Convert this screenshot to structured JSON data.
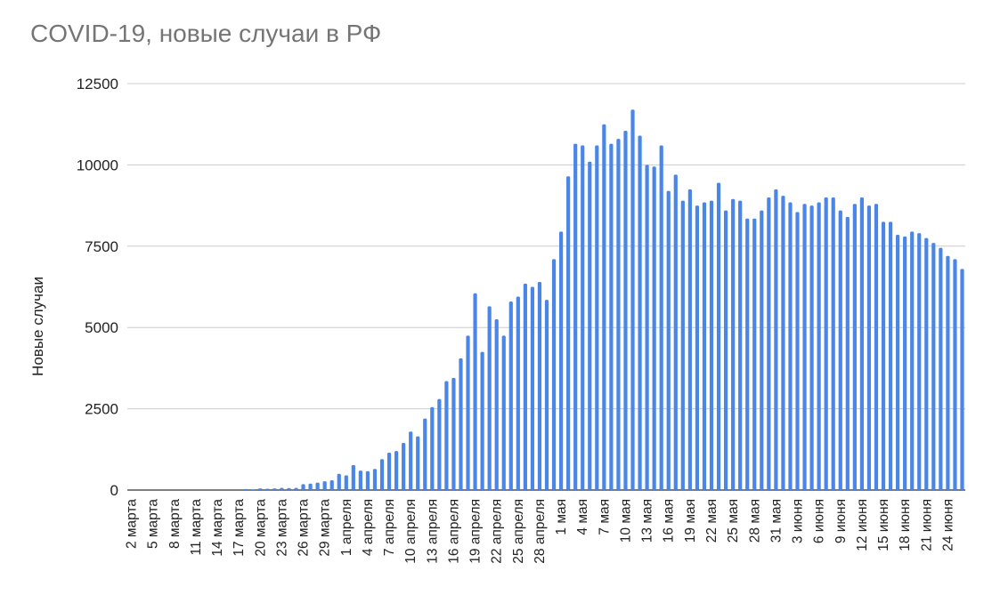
{
  "chart_data": {
    "type": "bar",
    "title": "COVID-19, новые случаи в РФ",
    "xlabel": "",
    "ylabel": "Новые случаи",
    "ylim": [
      0,
      12500
    ],
    "yticks": [
      0,
      2500,
      5000,
      7500,
      10000,
      12500
    ],
    "grid": true,
    "bar_color": "#4a86e8",
    "grid_color": "#cccccc",
    "categories": [
      "2 марта",
      "3 марта",
      "4 марта",
      "5 марта",
      "6 марта",
      "7 марта",
      "8 марта",
      "9 марта",
      "10 марта",
      "11 марта",
      "12 марта",
      "13 марта",
      "14 марта",
      "15 марта",
      "16 марта",
      "17 марта",
      "18 марта",
      "19 марта",
      "20 марта",
      "21 марта",
      "22 марта",
      "23 марта",
      "24 марта",
      "25 марта",
      "26 марта",
      "27 марта",
      "28 марта",
      "29 марта",
      "30 марта",
      "31 марта",
      "1 апреля",
      "2 апреля",
      "3 апреля",
      "4 апреля",
      "5 апреля",
      "6 апреля",
      "7 апреля",
      "8 апреля",
      "9 апреля",
      "10 апреля",
      "11 апреля",
      "12 апреля",
      "13 апреля",
      "14 апреля",
      "15 апреля",
      "16 апреля",
      "17 апреля",
      "18 апреля",
      "19 апреля",
      "20 апреля",
      "21 апреля",
      "22 апреля",
      "23 апреля",
      "24 апреля",
      "25 апреля",
      "26 апреля",
      "27 апреля",
      "28 апреля",
      "29 апреля",
      "30 апреля",
      "1 мая",
      "2 мая",
      "3 мая",
      "4 мая",
      "5 мая",
      "6 мая",
      "7 мая",
      "8 мая",
      "9 мая",
      "10 мая",
      "11 мая",
      "12 мая",
      "13 мая",
      "14 мая",
      "15 мая",
      "16 мая",
      "17 мая",
      "18 мая",
      "19 мая",
      "20 мая",
      "21 мая",
      "22 мая",
      "23 мая",
      "24 мая",
      "25 мая",
      "26 мая",
      "27 мая",
      "28 мая",
      "29 мая",
      "30 мая",
      "31 мая",
      "1 июня",
      "2 июня",
      "3 июня",
      "4 июня",
      "5 июня",
      "6 июня",
      "7 июня",
      "8 июня",
      "9 июня",
      "10 июня",
      "11 июня",
      "12 июня",
      "13 июня",
      "14 июня",
      "15 июня",
      "16 июня",
      "17 июня",
      "18 июня",
      "19 июня",
      "20 июня",
      "21 июня",
      "22 июня",
      "23 июня",
      "24 июня",
      "25 июня",
      "26 июня"
    ],
    "xtick_labels": [
      "2 марта",
      "5 марта",
      "8 марта",
      "11 марта",
      "14 марта",
      "17 марта",
      "20 марта",
      "23 марта",
      "26 марта",
      "29 марта",
      "1 апреля",
      "4 апреля",
      "7 апреля",
      "10 апреля",
      "13 апреля",
      "16 апреля",
      "19 апреля",
      "22 апреля",
      "25 апреля",
      "28 апреля",
      "1 мая",
      "4 мая",
      "7 мая",
      "10 мая",
      "13 мая",
      "16 мая",
      "19 мая",
      "22 мая",
      "25 мая",
      "28 мая",
      "31 мая",
      "3 июня",
      "6 июня",
      "9 июня",
      "12 июня",
      "15 июня",
      "18 июня",
      "21 июня",
      "24 июня"
    ],
    "values": [
      0,
      0,
      0,
      0,
      0,
      0,
      0,
      0,
      0,
      0,
      0,
      0,
      0,
      0,
      0,
      0,
      30,
      20,
      50,
      40,
      50,
      70,
      60,
      70,
      180,
      200,
      230,
      270,
      300,
      500,
      450,
      770,
      600,
      580,
      650,
      950,
      1150,
      1200,
      1450,
      1800,
      1650,
      2200,
      2550,
      2800,
      3350,
      3450,
      4050,
      4750,
      6050,
      4250,
      5650,
      5250,
      4750,
      5800,
      5950,
      6350,
      6250,
      6400,
      5850,
      7100,
      7950,
      9650,
      10650,
      10600,
      10100,
      10600,
      11250,
      10650,
      10800,
      11050,
      11700,
      10900,
      10000,
      9950,
      10600,
      9200,
      9700,
      8900,
      9250,
      8750,
      8850,
      8900,
      9450,
      8600,
      8950,
      8900,
      8350,
      8350,
      8600,
      9000,
      9250,
      9050,
      8850,
      8550,
      8800,
      8750,
      8850,
      9000,
      9000,
      8600,
      8400,
      8800,
      9000,
      8750,
      8800,
      8250,
      8250,
      7850,
      7800,
      7950,
      7900,
      7750,
      7600,
      7450,
      7200,
      7100,
      6800
    ]
  }
}
